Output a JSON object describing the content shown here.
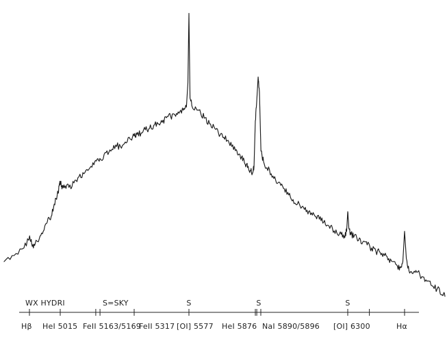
{
  "chart_data": {
    "type": "line",
    "title": "WX HYDRI",
    "sky_note": "S=SKY",
    "sky_marker": "S",
    "xlabel": "",
    "ylabel": "",
    "grid": false,
    "xlim": [
      4810,
      6720
    ],
    "line_labels": [
      {
        "text": "Hβ",
        "wavelength": 4861
      },
      {
        "text": "HeI 5015",
        "wavelength": 5015
      },
      {
        "text": "FeII 5163/5169",
        "wavelength": 5166
      },
      {
        "text": "FeII 5317",
        "wavelength": 5317
      },
      {
        "text": "[OI] 5577",
        "wavelength": 5577
      },
      {
        "text": "HeI 5876",
        "wavelength": 5876
      },
      {
        "text": "NaI 5890/5896",
        "wavelength": 5893
      },
      {
        "text": "[OI] 6300",
        "wavelength": 6300
      },
      {
        "text": "Hα",
        "wavelength": 6563
      }
    ],
    "sky_lines": [
      5577,
      5893,
      6300
    ],
    "series": [
      {
        "x": [
          4810,
          4830,
          4850,
          4862,
          4875,
          4890,
          4910,
          4930,
          4950,
          4970,
          4985,
          5000,
          5010,
          5015,
          5022,
          5035,
          5050,
          5070,
          5090,
          5110,
          5130,
          5150,
          5166,
          5180,
          5200,
          5220,
          5240,
          5260,
          5280,
          5300,
          5317,
          5330,
          5350,
          5370,
          5390,
          5410,
          5430,
          5450,
          5470,
          5490,
          5510,
          5530,
          5550,
          5565,
          5572,
          5577,
          5582,
          5590,
          5610,
          5630,
          5650,
          5670,
          5690,
          5710,
          5730,
          5750,
          5770,
          5790,
          5805,
          5815,
          5825,
          5835,
          5845,
          5855,
          5865,
          5870,
          5876,
          5882,
          5890,
          5896,
          5903,
          5915,
          5930,
          5950,
          5970,
          5990,
          6010,
          6030,
          6050,
          6070,
          6090,
          6110,
          6130,
          6150,
          6170,
          6190,
          6210,
          6230,
          6250,
          6270,
          6285,
          6295,
          6300,
          6305,
          6315,
          6330,
          6350,
          6370,
          6390,
          6410,
          6430,
          6450,
          6470,
          6490,
          6510,
          6530,
          6545,
          6555,
          6563,
          6570,
          6580,
          6595,
          6610,
          6630,
          6650,
          6670,
          6690,
          6710,
          6720
        ],
        "y": [
          0.1,
          0.14,
          0.19,
          0.27,
          0.2,
          0.22,
          0.25,
          0.3,
          0.36,
          0.4,
          0.48,
          0.54,
          0.6,
          0.63,
          0.58,
          0.6,
          0.59,
          0.62,
          0.66,
          0.68,
          0.71,
          0.74,
          0.78,
          0.77,
          0.82,
          0.83,
          0.87,
          0.86,
          0.89,
          0.91,
          0.93,
          0.94,
          0.95,
          0.97,
          0.98,
          1.0,
          1.01,
          1.02,
          1.05,
          1.06,
          1.07,
          1.08,
          1.1,
          1.12,
          1.28,
          1.74,
          1.18,
          1.13,
          1.11,
          1.08,
          1.05,
          1.01,
          0.99,
          0.95,
          0.92,
          0.9,
          0.86,
          0.84,
          0.81,
          0.79,
          0.77,
          0.74,
          0.72,
          0.7,
          0.69,
          0.73,
          1.03,
          1.14,
          1.32,
          1.22,
          0.83,
          0.76,
          0.72,
          0.68,
          0.64,
          0.62,
          0.58,
          0.54,
          0.51,
          0.48,
          0.46,
          0.43,
          0.41,
          0.4,
          0.38,
          0.36,
          0.34,
          0.32,
          0.29,
          0.28,
          0.27,
          0.3,
          0.43,
          0.32,
          0.28,
          0.27,
          0.24,
          0.23,
          0.21,
          0.19,
          0.17,
          0.16,
          0.14,
          0.12,
          0.1,
          0.07,
          0.06,
          0.1,
          0.3,
          0.12,
          0.04,
          0.02,
          0.03,
          0.0,
          -0.03,
          -0.06,
          -0.08,
          -0.12,
          -0.13
        ]
      }
    ]
  }
}
